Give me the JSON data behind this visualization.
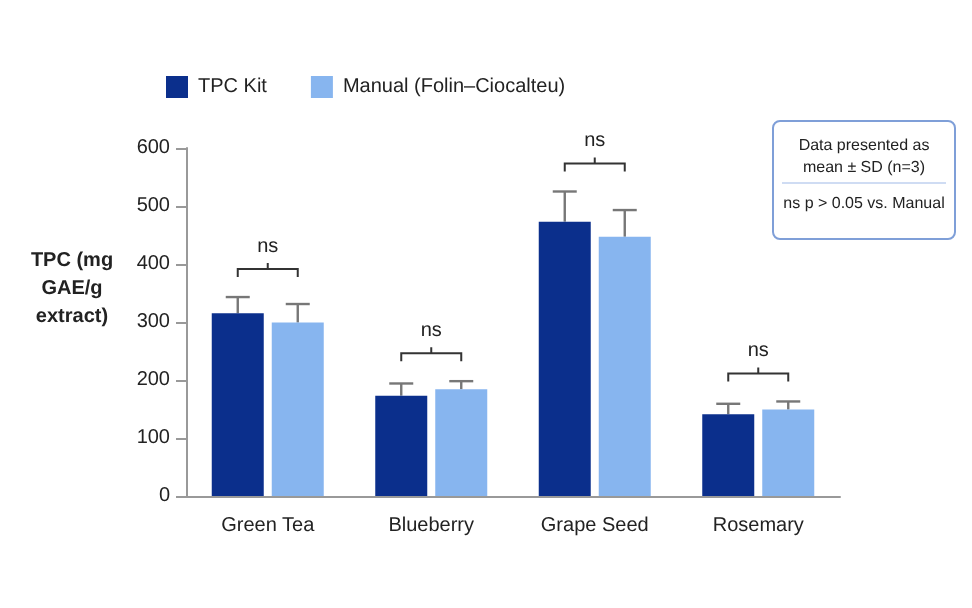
{
  "chart_data": {
    "type": "bar",
    "ylabel": "TPC (mg GAE/g extract)",
    "categories": [
      "Green Tea",
      "Blueberry",
      "Grape Seed",
      "Rosemary"
    ],
    "series": [
      {
        "name": "TPC Kit",
        "color": "#0b2f8c",
        "values": [
          315,
          173,
          473,
          141
        ],
        "errors": [
          28,
          21,
          52,
          18
        ]
      },
      {
        "name": "Manual (Folin–Ciocalteu)",
        "color": "#87b5ef",
        "values": [
          299,
          184,
          447,
          149
        ],
        "errors": [
          32,
          14,
          46,
          14
        ]
      }
    ],
    "ylim": [
      0,
      600
    ],
    "yticks": [
      0,
      100,
      200,
      300,
      400,
      500,
      600
    ],
    "grid": false,
    "legend": "top left",
    "annotations": [
      "ns",
      "ns",
      "ns",
      "ns",
      "Data presented as mean ± SD (n=3)",
      "ns  p > 0.05 vs. Manual"
    ]
  }
}
